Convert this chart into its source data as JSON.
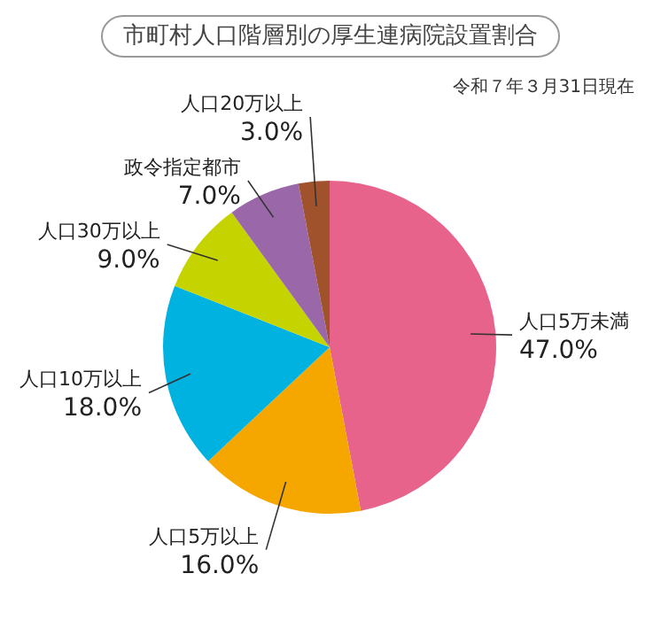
{
  "chart_data": {
    "type": "pie",
    "title": "市町村人口階層別の厚生連病院設置割合",
    "subtitle": "令和７年３月31日現在",
    "categories": [
      "人口5万未満",
      "人口5万以上",
      "人口10万以上",
      "人口30万以上",
      "政令指定都市",
      "人口20万以上"
    ],
    "values": [
      47,
      16,
      18,
      9,
      7,
      3
    ],
    "value_labels": [
      "47.0%",
      "16.0%",
      "18.0%",
      "9.0%",
      "7.0%",
      "3.0%"
    ],
    "colors": [
      "#e8638b",
      "#f5a700",
      "#00b2df",
      "#c5d400",
      "#9a68a9",
      "#a0522d"
    ]
  }
}
